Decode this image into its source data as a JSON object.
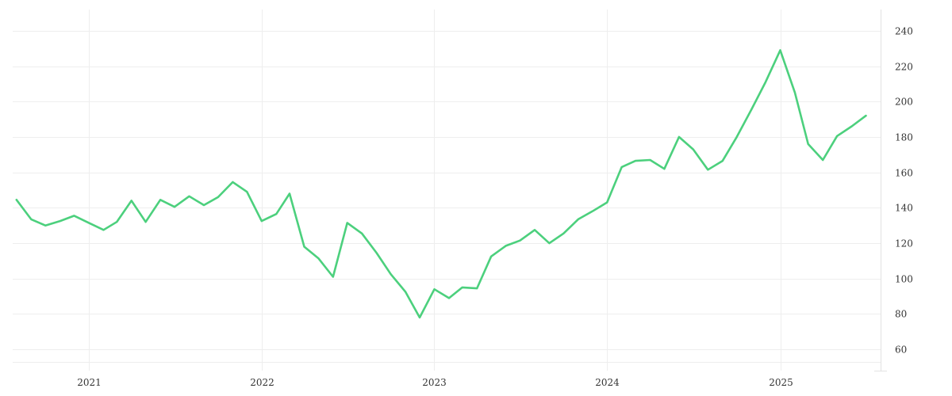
{
  "chart_data": {
    "type": "line",
    "title": "",
    "xlabel": "",
    "ylabel": "",
    "x_tick_labels": [
      "2021",
      "2022",
      "2023",
      "2024",
      "2025"
    ],
    "y_tick_labels": [
      "60",
      "80",
      "100",
      "120",
      "140",
      "160",
      "180",
      "200",
      "220",
      "240"
    ],
    "y_ticks": [
      60,
      80,
      100,
      120,
      140,
      160,
      180,
      200,
      220,
      240
    ],
    "ylim": [
      48,
      252
    ],
    "xlim": [
      "2020-07-24",
      "2025-08-01"
    ],
    "x_tick_dates": [
      "2021-01-01",
      "2022-01-01",
      "2023-01-01",
      "2024-01-01",
      "2025-01-01"
    ],
    "grid": true,
    "y_axis_position": "right",
    "legend": "none",
    "series": [
      {
        "color": "#4cd07d",
        "x": [
          "2020-08-01",
          "2020-09-01",
          "2020-10-01",
          "2020-11-01",
          "2020-12-01",
          "2021-01-01",
          "2021-02-01",
          "2021-03-01",
          "2021-04-01",
          "2021-05-01",
          "2021-06-01",
          "2021-07-01",
          "2021-08-01",
          "2021-09-01",
          "2021-10-01",
          "2021-11-01",
          "2021-12-01",
          "2022-01-01",
          "2022-02-01",
          "2022-03-01",
          "2022-04-01",
          "2022-05-01",
          "2022-06-01",
          "2022-07-01",
          "2022-08-01",
          "2022-09-01",
          "2022-10-01",
          "2022-11-01",
          "2022-12-01",
          "2023-01-01",
          "2023-02-01",
          "2023-03-01",
          "2023-04-01",
          "2023-05-01",
          "2023-06-01",
          "2023-07-01",
          "2023-08-01",
          "2023-09-01",
          "2023-10-01",
          "2023-11-01",
          "2023-12-01",
          "2024-01-01",
          "2024-02-01",
          "2024-03-01",
          "2024-04-01",
          "2024-05-01",
          "2024-06-01",
          "2024-07-01",
          "2024-08-01",
          "2024-09-01",
          "2024-10-01",
          "2024-11-01",
          "2024-12-01",
          "2025-01-01",
          "2025-02-01",
          "2025-03-01",
          "2025-04-01",
          "2025-05-01",
          "2025-06-01",
          "2025-07-01"
        ],
        "y": [
          144.5,
          133.5,
          130,
          132.5,
          135.5,
          131.5,
          127.5,
          132,
          144,
          132,
          144.5,
          140.5,
          146.5,
          141.5,
          146,
          154.5,
          149,
          132.5,
          136.5,
          148,
          118,
          111.5,
          101,
          131.5,
          125.5,
          114.5,
          102.5,
          92.5,
          78,
          94,
          89,
          95,
          94.5,
          112.5,
          118.5,
          121.5,
          127.5,
          120,
          125.5,
          133.5,
          138,
          143,
          163,
          166.5,
          167,
          162,
          180,
          173,
          161.5,
          166.5,
          180,
          195.5,
          211,
          229,
          205,
          176,
          167,
          180.5,
          186,
          192
        ]
      }
    ]
  }
}
